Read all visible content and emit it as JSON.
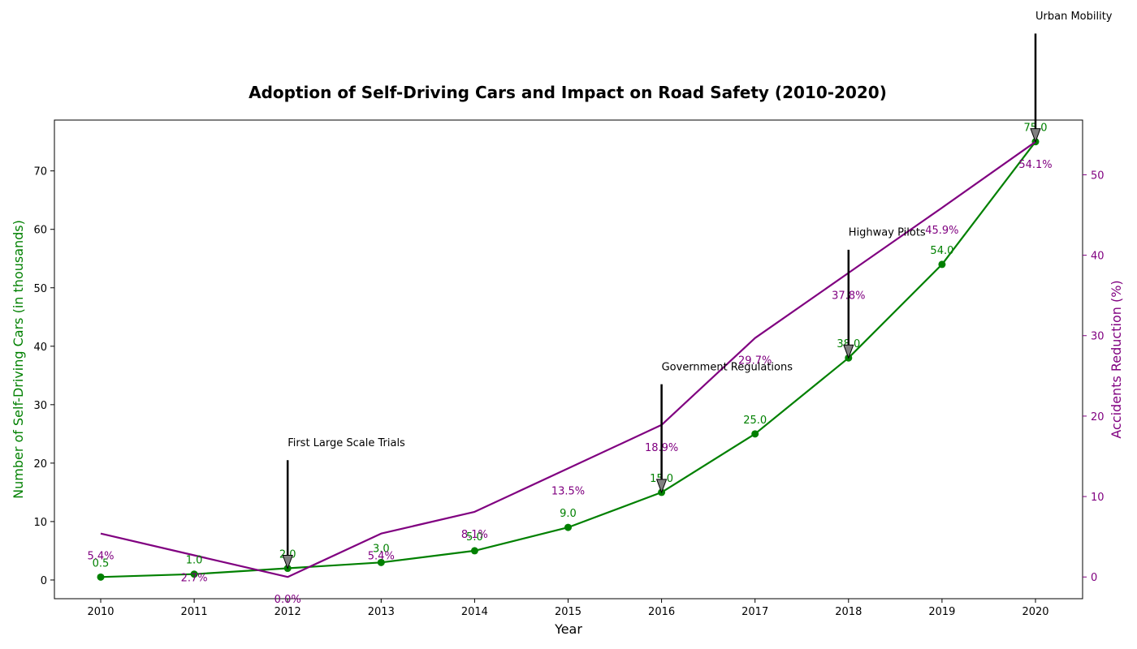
{
  "chart_data": {
    "type": "line",
    "title": "Adoption of Self-Driving Cars and Impact on Road Safety (2010-2020)",
    "xlabel": "Year",
    "ylabel_left": "Number of Self-Driving Cars (in thousands)",
    "ylabel_right": "Accidents Reduction (%)",
    "x": [
      "2010",
      "2011",
      "2012",
      "2013",
      "2014",
      "2015",
      "2016",
      "2017",
      "2018",
      "2019",
      "2020"
    ],
    "ylim_left": [
      -3.2,
      78.7
    ],
    "ylim_right": [
      -2.7,
      56.8
    ],
    "yticks_left": [
      "0",
      "10",
      "20",
      "30",
      "40",
      "50",
      "60",
      "70"
    ],
    "yticks_right": [
      "0",
      "10",
      "20",
      "30",
      "40",
      "50"
    ],
    "grid": false,
    "series": [
      {
        "key": "cars",
        "axis": "left",
        "color": "#008000",
        "marker": "circle",
        "values": [
          0.5,
          1.0,
          2.0,
          3.0,
          5.0,
          9.0,
          15.0,
          25.0,
          38.0,
          54.0,
          75.0
        ],
        "labels": [
          "0.5",
          "1.0",
          "2.0",
          "3.0",
          "5.0",
          "9.0",
          "15.0",
          "25.0",
          "38.0",
          "54.0",
          "75.0"
        ]
      },
      {
        "key": "reduction",
        "axis": "right",
        "color": "#800080",
        "marker": "none",
        "values": [
          5.4,
          2.7,
          0.0,
          5.4,
          8.1,
          13.5,
          18.9,
          29.7,
          37.8,
          45.9,
          54.1
        ],
        "labels": [
          "5.4%",
          "2.7%",
          "0.0%",
          "5.4%",
          "8.1%",
          "13.5%",
          "18.9%",
          "29.7%",
          "37.8%",
          "45.9%",
          "54.1%"
        ]
      }
    ],
    "annotations": [
      {
        "text": "First Large Scale Trials",
        "x": "2012",
        "y": 2.0,
        "text_y": 20.5
      },
      {
        "text": "Government Regulations",
        "x": "2016",
        "y": 15.0,
        "text_y": 33.5
      },
      {
        "text": "Highway Pilots",
        "x": "2018",
        "y": 38.0,
        "text_y": 56.5
      },
      {
        "text": "Urban Mobility",
        "x": "2020",
        "y": 75.0,
        "text_y": 93.5
      }
    ]
  }
}
